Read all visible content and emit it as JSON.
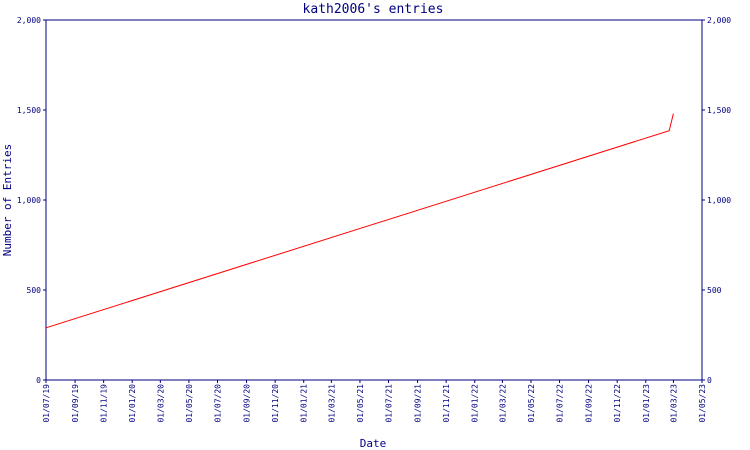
{
  "chart_data": {
    "type": "line",
    "title": "kath2006's entries",
    "xlabel": "Date",
    "ylabel": "Number of Entries",
    "ylim": [
      0,
      2000
    ],
    "yticks": [
      0,
      500,
      1000,
      1500,
      2000
    ],
    "ytick_labels": [
      "0",
      "500",
      "1,000",
      "1,500",
      "2,000"
    ],
    "xlim": [
      "2019-07-01",
      "2023-05-01"
    ],
    "xtick_labels": [
      "01/07/19",
      "01/09/19",
      "01/11/19",
      "01/01/20",
      "01/03/20",
      "01/05/20",
      "01/07/20",
      "01/09/20",
      "01/11/20",
      "01/01/21",
      "01/03/21",
      "01/05/21",
      "01/07/21",
      "01/09/21",
      "01/11/21",
      "01/01/22",
      "01/03/22",
      "01/05/22",
      "01/07/22",
      "01/09/22",
      "01/11/22",
      "01/01/23",
      "01/03/23",
      "01/05/23"
    ],
    "series": [
      {
        "color": "#ff0000",
        "points": [
          {
            "x": "2019-07-01",
            "y": 290
          },
          {
            "x": "2023-02-20",
            "y": 1385
          },
          {
            "x": "2023-03-01",
            "y": 1480
          }
        ]
      }
    ],
    "axis_color": "#000080",
    "grid": false,
    "right_axis": true
  }
}
